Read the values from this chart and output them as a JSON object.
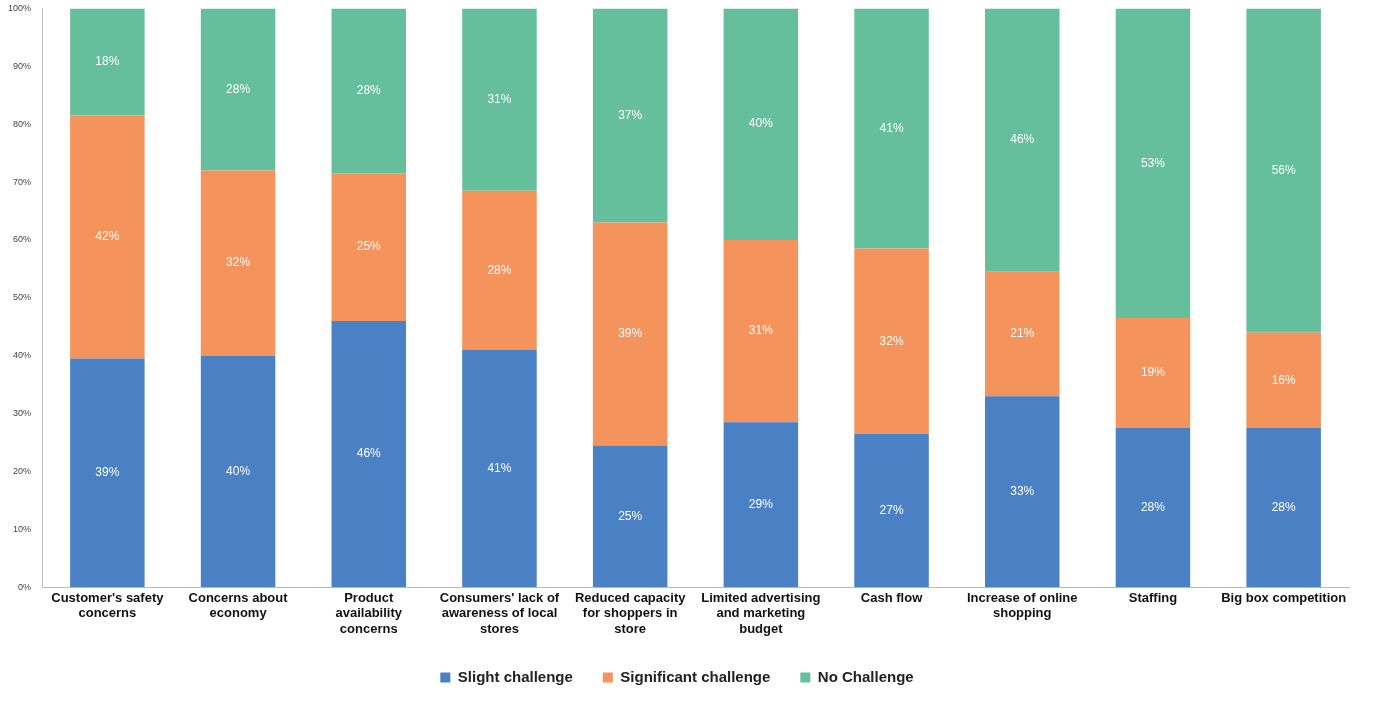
{
  "chart_data": {
    "type": "bar",
    "stacked": true,
    "categories": [
      "Customer's safety concerns",
      "Concerns about economy",
      "Product availability concerns",
      "Consumers' lack of awareness of local stores",
      "Reduced capacity for shoppers in store",
      "Limited advertising and marketing budget",
      "Cash flow",
      "Increase of online shopping",
      "Staffing",
      "Big box competition"
    ],
    "series": [
      {
        "name": "Slight challenge",
        "color": "#4a80c4",
        "values": [
          39.5,
          40,
          46,
          41,
          24.5,
          28.5,
          26.5,
          33,
          27.5,
          27.5
        ],
        "value_labels": [
          "39%",
          "40%",
          "46%",
          "41%",
          "25%",
          "29%",
          "27%",
          "33%",
          "28%",
          "28%"
        ]
      },
      {
        "name": "Significant challenge",
        "color": "#f4935b",
        "values": [
          42,
          32,
          25.5,
          27.5,
          38.5,
          31.5,
          32,
          21.5,
          19,
          16.5
        ],
        "value_labels": [
          "42%",
          "32%",
          "25%",
          "28%",
          "39%",
          "31%",
          "32%",
          "21%",
          "19%",
          "16%"
        ]
      },
      {
        "name": "No Challenge",
        "color": "#66bf9c",
        "values": [
          18.5,
          28,
          28.5,
          31.5,
          37,
          40,
          41.5,
          45.5,
          53.5,
          56
        ],
        "value_labels": [
          "18%",
          "28%",
          "28%",
          "31%",
          "37%",
          "40%",
          "41%",
          "46%",
          "53%",
          "56%"
        ]
      }
    ],
    "ylim": [
      0,
      100
    ],
    "yticks": [
      {
        "value": 0,
        "label": "0%"
      },
      {
        "value": 10,
        "label": "10%"
      },
      {
        "value": 20,
        "label": "20%"
      },
      {
        "value": 30,
        "label": "30%"
      },
      {
        "value": 40,
        "label": "40%"
      },
      {
        "value": 50,
        "label": "50%"
      },
      {
        "value": 60,
        "label": "60%"
      },
      {
        "value": 70,
        "label": "70%"
      },
      {
        "value": 80,
        "label": "80%"
      },
      {
        "value": 90,
        "label": "90%"
      },
      {
        "value": 100,
        "label": "100%"
      }
    ],
    "grid": false,
    "legend": "bottom"
  }
}
